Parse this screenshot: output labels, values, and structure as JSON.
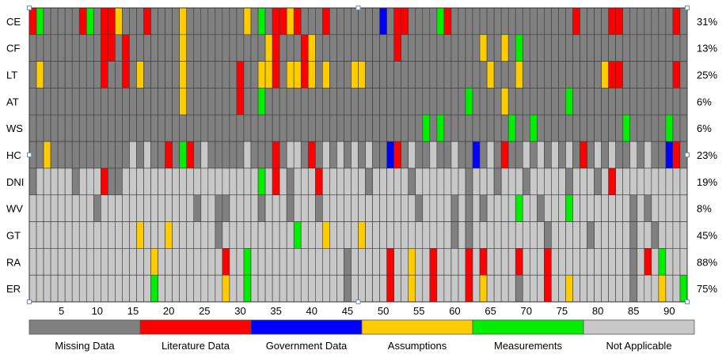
{
  "chart_data": {
    "type": "heatmap",
    "title": "",
    "xlabel": "",
    "ylabel": "",
    "xlim": [
      1,
      92
    ],
    "x_ticks": [
      5,
      10,
      15,
      20,
      25,
      30,
      35,
      40,
      45,
      50,
      55,
      60,
      65,
      70,
      75,
      80,
      85,
      90
    ],
    "colors": {
      "missing": "#808080",
      "literature": "#ff0000",
      "government": "#0000ff",
      "assumptions": "#ffcc00",
      "measurements": "#00ee00",
      "not_applicable": "#c8c8c8"
    },
    "legend": [
      {
        "key": "missing",
        "label": "Missing Data"
      },
      {
        "key": "literature",
        "label": "Literature Data"
      },
      {
        "key": "government",
        "label": "Government Data"
      },
      {
        "key": "assumptions",
        "label": "Assumptions"
      },
      {
        "key": "measurements",
        "label": "Measurements"
      },
      {
        "key": "not_applicable",
        "label": "Not Applicable"
      }
    ],
    "rows": [
      {
        "label": "CE",
        "percent": "31%",
        "default": "missing",
        "cells": {
          "1": "literature",
          "2": "measurements",
          "8": "literature",
          "9": "measurements",
          "11": "literature",
          "12": "literature",
          "13": "assumptions",
          "17": "literature",
          "22": "assumptions",
          "31": "assumptions",
          "33": "measurements",
          "35": "literature",
          "36": "literature",
          "37": "assumptions",
          "38": "literature",
          "42": "literature",
          "50": "government",
          "52": "literature",
          "53": "literature",
          "58": "measurements",
          "59": "literature",
          "77": "literature",
          "82": "literature",
          "83": "literature",
          "91": "literature"
        }
      },
      {
        "label": "CF",
        "percent": "13%",
        "default": "missing",
        "cells": {
          "11": "literature",
          "12": "literature",
          "14": "literature",
          "22": "assumptions",
          "34": "assumptions",
          "35": "literature",
          "39": "literature",
          "40": "assumptions",
          "52": "literature",
          "64": "assumptions",
          "67": "assumptions",
          "69": "measurements"
        }
      },
      {
        "label": "LT",
        "percent": "25%",
        "default": "missing",
        "cells": {
          "2": "assumptions",
          "11": "literature",
          "14": "literature",
          "16": "assumptions",
          "22": "assumptions",
          "30": "literature",
          "33": "assumptions",
          "34": "assumptions",
          "35": "literature",
          "37": "assumptions",
          "38": "assumptions",
          "39": "literature",
          "40": "assumptions",
          "42": "assumptions",
          "46": "assumptions",
          "47": "assumptions",
          "65": "assumptions",
          "69": "assumptions",
          "81": "assumptions",
          "82": "literature",
          "83": "literature",
          "91": "literature"
        }
      },
      {
        "label": "AT",
        "percent": "6%",
        "default": "missing",
        "cells": {
          "22": "assumptions",
          "30": "literature",
          "33": "measurements",
          "62": "measurements",
          "67": "assumptions",
          "76": "measurements"
        }
      },
      {
        "label": "WS",
        "percent": "6%",
        "default": "missing",
        "cells": {
          "56": "measurements",
          "58": "measurements",
          "68": "measurements",
          "71": "measurements",
          "84": "measurements",
          "90": "measurements"
        }
      },
      {
        "label": "HC",
        "percent": "23%",
        "default": "missing",
        "cells": {
          "3": "assumptions",
          "15": "not_applicable",
          "17": "not_applicable",
          "20": "literature",
          "22": "measurements",
          "23": "literature",
          "25": "not_applicable",
          "31": "not_applicable",
          "35": "literature",
          "37": "not_applicable",
          "38": "not_applicable",
          "40": "literature",
          "42": "not_applicable",
          "44": "not_applicable",
          "46": "not_applicable",
          "48": "not_applicable",
          "51": "government",
          "52": "literature",
          "54": "not_applicable",
          "57": "not_applicable",
          "60": "not_applicable",
          "63": "government",
          "65": "not_applicable",
          "67": "literature",
          "70": "not_applicable",
          "72": "not_applicable",
          "74": "not_applicable",
          "76": "not_applicable",
          "78": "literature",
          "80": "not_applicable",
          "82": "not_applicable",
          "85": "not_applicable",
          "87": "not_applicable",
          "90": "government",
          "91": "literature"
        }
      },
      {
        "label": "DNI",
        "percent": "19%",
        "default": "not_applicable",
        "cells": {
          "1": "missing",
          "7": "missing",
          "11": "literature",
          "12": "missing",
          "13": "missing",
          "33": "measurements",
          "35": "literature",
          "37": "missing",
          "41": "literature",
          "48": "missing",
          "54": "missing",
          "62": "missing",
          "66": "missing",
          "70": "missing",
          "76": "missing",
          "80": "missing",
          "82": "literature"
        }
      },
      {
        "label": "WV",
        "percent": "8%",
        "default": "not_applicable",
        "cells": {
          "10": "missing",
          "24": "missing",
          "27": "missing",
          "28": "missing",
          "33": "missing",
          "37": "missing",
          "41": "missing",
          "55": "missing",
          "60": "missing",
          "62": "missing",
          "64": "missing",
          "69": "measurements",
          "72": "missing",
          "76": "measurements",
          "85": "missing",
          "87": "missing"
        }
      },
      {
        "label": "GT",
        "percent": "45%",
        "default": "not_applicable",
        "cells": {
          "16": "assumptions",
          "20": "assumptions",
          "27": "missing",
          "38": "measurements",
          "42": "assumptions",
          "47": "assumptions",
          "60": "missing",
          "62": "missing",
          "73": "missing",
          "79": "missing",
          "85": "missing",
          "88": "missing"
        }
      },
      {
        "label": "RA",
        "percent": "88%",
        "default": "not_applicable",
        "cells": {
          "18": "assumptions",
          "28": "literature",
          "31": "measurements",
          "45": "missing",
          "51": "literature",
          "54": "assumptions",
          "57": "literature",
          "62": "literature",
          "64": "literature",
          "69": "literature",
          "73": "literature",
          "85": "missing",
          "87": "literature",
          "89": "measurements"
        }
      },
      {
        "label": "ER",
        "percent": "75%",
        "default": "not_applicable",
        "cells": {
          "18": "measurements",
          "28": "assumptions",
          "31": "measurements",
          "45": "missing",
          "51": "literature",
          "54": "assumptions",
          "57": "literature",
          "62": "literature",
          "64": "assumptions",
          "69": "missing",
          "73": "literature",
          "76": "assumptions",
          "85": "missing",
          "89": "assumptions",
          "92": "measurements"
        }
      }
    ]
  }
}
